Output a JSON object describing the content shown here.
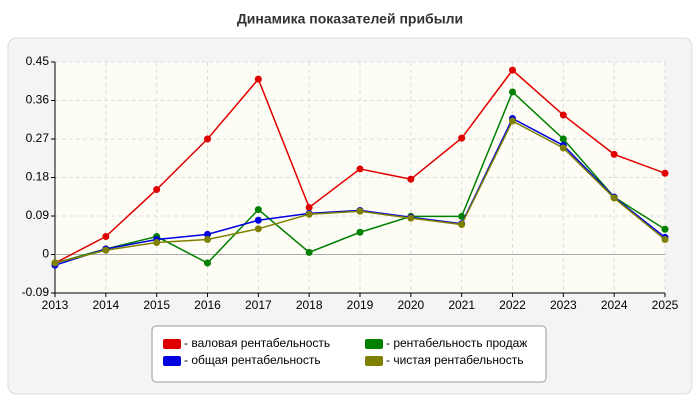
{
  "chart_data": {
    "type": "line",
    "title": "Динамика показателей прибыли",
    "categories": [
      "2013",
      "2014",
      "2015",
      "2016",
      "2017",
      "2018",
      "2019",
      "2020",
      "2021",
      "2022",
      "2023",
      "2024",
      "2025"
    ],
    "series": [
      {
        "name": "- валовая рентабельность",
        "color": "#e00000",
        "values": [
          -0.02,
          0.042,
          0.152,
          0.27,
          0.41,
          0.11,
          0.2,
          0.176,
          0.272,
          0.431,
          0.326,
          0.234,
          0.19
        ]
      },
      {
        "name": "- рентабельность продаж",
        "color": "#008000",
        "values": [
          -0.02,
          0.013,
          0.042,
          -0.02,
          0.105,
          0.005,
          0.052,
          0.089,
          0.089,
          0.38,
          0.27,
          0.134,
          0.059
        ]
      },
      {
        "name": "- общая рентабельность",
        "color": "#0000e0",
        "values": [
          -0.025,
          0.013,
          0.035,
          0.047,
          0.08,
          0.096,
          0.103,
          0.087,
          0.072,
          0.318,
          0.255,
          0.134,
          0.04
        ]
      },
      {
        "name": "- чистая рентабельность",
        "color": "#808000",
        "values": [
          -0.02,
          0.01,
          0.028,
          0.035,
          0.06,
          0.094,
          0.101,
          0.085,
          0.07,
          0.312,
          0.249,
          0.132,
          0.035
        ]
      }
    ],
    "ylim": [
      -0.09,
      0.45
    ],
    "yticks": [
      -0.09,
      0,
      0.09,
      0.18,
      0.27,
      0.36,
      0.45
    ],
    "grid": true,
    "legend": "bottom"
  }
}
